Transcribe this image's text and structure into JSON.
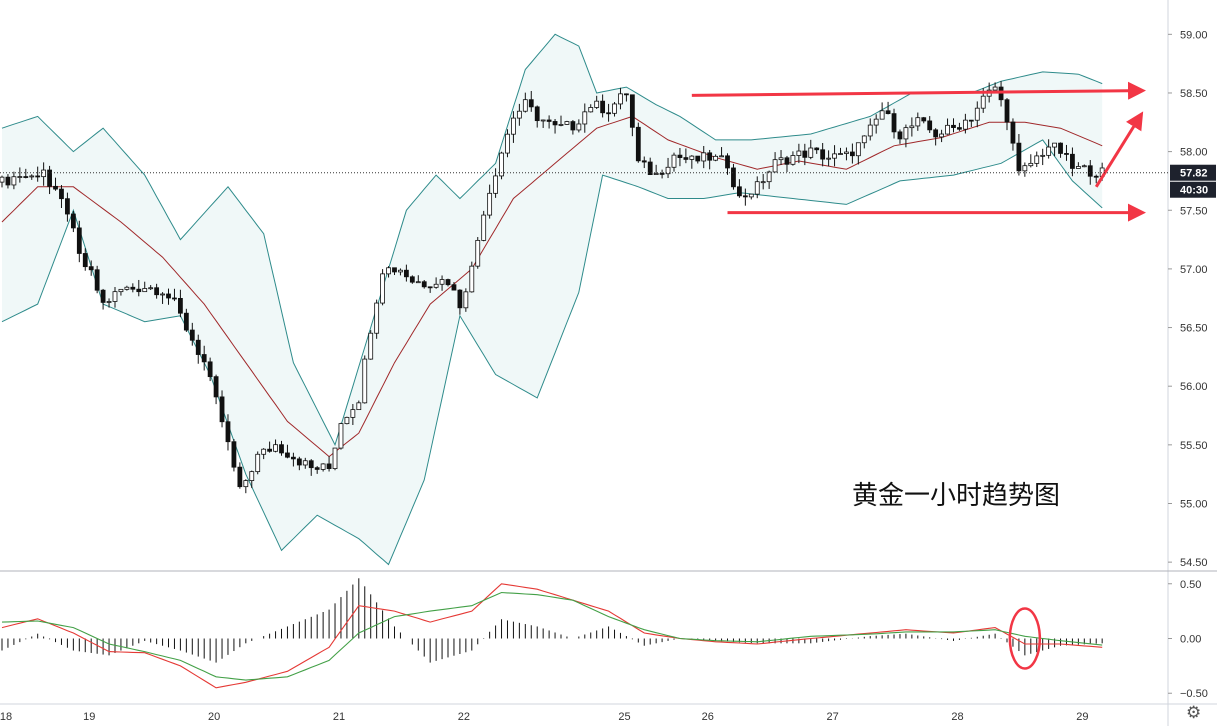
{
  "chart_data": [
    {
      "type": "candlestick",
      "instrument_note": "黄金一小时趋势图",
      "price_axis": {
        "ticks": [
          59.0,
          58.5,
          58.0,
          57.5,
          57.0,
          56.5,
          56.0,
          55.5,
          55.0,
          54.5
        ],
        "ylim": [
          54.45,
          59.25
        ]
      },
      "time_axis": {
        "ticks": [
          "18",
          "19",
          "20",
          "21",
          "22",
          "25",
          "26",
          "27",
          "28",
          "29"
        ]
      },
      "last_price": "57.82",
      "countdown": "40:30",
      "close_path": [
        [
          0,
          57.74
        ],
        [
          3,
          57.8
        ],
        [
          5,
          57.78
        ],
        [
          7,
          57.86
        ],
        [
          8,
          57.7
        ],
        [
          11,
          57.5
        ],
        [
          13,
          57.1
        ],
        [
          15,
          56.95
        ],
        [
          17,
          56.7
        ],
        [
          20,
          56.82
        ],
        [
          24,
          56.85
        ],
        [
          27,
          56.82
        ],
        [
          29,
          56.7
        ],
        [
          31,
          56.5
        ],
        [
          34,
          56.2
        ],
        [
          37,
          55.7
        ],
        [
          40,
          55.1
        ],
        [
          43,
          55.4
        ],
        [
          46,
          55.5
        ],
        [
          49,
          55.4
        ],
        [
          52,
          55.3
        ],
        [
          55,
          55.3
        ],
        [
          57,
          55.7
        ],
        [
          60,
          55.9
        ],
        [
          62,
          56.5
        ],
        [
          64,
          57.0
        ],
        [
          67,
          57.0
        ],
        [
          69,
          56.9
        ],
        [
          71,
          56.88
        ],
        [
          73,
          56.9
        ],
        [
          75,
          56.9
        ],
        [
          77,
          56.7
        ],
        [
          79,
          57.0
        ],
        [
          81,
          57.5
        ],
        [
          84,
          58.0
        ],
        [
          86,
          58.3
        ],
        [
          88,
          58.4
        ],
        [
          90,
          58.3
        ],
        [
          93,
          58.2
        ],
        [
          96,
          58.22
        ],
        [
          99,
          58.4
        ],
        [
          102,
          58.36
        ],
        [
          105,
          58.5
        ],
        [
          107,
          57.9
        ],
        [
          110,
          57.8
        ],
        [
          113,
          57.97
        ],
        [
          116,
          57.92
        ],
        [
          119,
          57.95
        ],
        [
          122,
          57.9
        ],
        [
          124,
          57.6
        ],
        [
          127,
          57.7
        ],
        [
          130,
          57.9
        ],
        [
          133,
          57.96
        ],
        [
          136,
          58.0
        ],
        [
          139,
          57.95
        ],
        [
          142,
          57.96
        ],
        [
          145,
          58.1
        ],
        [
          148,
          58.35
        ],
        [
          151,
          58.15
        ],
        [
          154,
          58.25
        ],
        [
          157,
          58.15
        ],
        [
          160,
          58.2
        ],
        [
          163,
          58.3
        ],
        [
          165,
          58.45
        ],
        [
          167,
          58.55
        ],
        [
          169,
          58.3
        ],
        [
          171,
          57.8
        ],
        [
          173,
          57.9
        ],
        [
          176,
          58.05
        ],
        [
          178,
          58.0
        ],
        [
          180,
          57.86
        ],
        [
          183,
          57.84
        ],
        [
          185,
          57.82
        ]
      ],
      "bollinger": {
        "upper": [
          [
            0,
            58.2
          ],
          [
            6,
            58.3
          ],
          [
            12,
            58.0
          ],
          [
            17,
            58.2
          ],
          [
            24,
            57.8
          ],
          [
            30,
            57.25
          ],
          [
            38,
            57.7
          ],
          [
            44,
            57.3
          ],
          [
            49,
            56.2
          ],
          [
            56,
            55.5
          ],
          [
            62,
            56.5
          ],
          [
            68,
            57.5
          ],
          [
            73,
            57.8
          ],
          [
            77,
            57.6
          ],
          [
            83,
            57.9
          ],
          [
            88,
            58.7
          ],
          [
            93,
            59.0
          ],
          [
            97,
            58.9
          ],
          [
            100,
            58.5
          ],
          [
            105,
            58.55
          ],
          [
            110,
            58.4
          ],
          [
            114,
            58.3
          ],
          [
            120,
            58.1
          ],
          [
            126,
            58.1
          ],
          [
            136,
            58.15
          ],
          [
            146,
            58.3
          ],
          [
            153,
            58.5
          ],
          [
            163,
            58.5
          ],
          [
            168,
            58.6
          ],
          [
            175,
            58.68
          ],
          [
            181,
            58.66
          ],
          [
            185,
            58.58
          ]
        ],
        "middle": [
          [
            0,
            57.4
          ],
          [
            6,
            57.7
          ],
          [
            12,
            57.7
          ],
          [
            20,
            57.4
          ],
          [
            27,
            57.1
          ],
          [
            34,
            56.7
          ],
          [
            41,
            56.2
          ],
          [
            48,
            55.7
          ],
          [
            55,
            55.4
          ],
          [
            60,
            55.6
          ],
          [
            66,
            56.2
          ],
          [
            72,
            56.7
          ],
          [
            79,
            57.0
          ],
          [
            86,
            57.6
          ],
          [
            93,
            57.9
          ],
          [
            100,
            58.2
          ],
          [
            106,
            58.3
          ],
          [
            112,
            58.1
          ],
          [
            120,
            57.95
          ],
          [
            127,
            57.85
          ],
          [
            134,
            57.92
          ],
          [
            142,
            57.85
          ],
          [
            150,
            58.05
          ],
          [
            158,
            58.12
          ],
          [
            166,
            58.25
          ],
          [
            172,
            58.25
          ],
          [
            178,
            58.2
          ],
          [
            185,
            58.05
          ]
        ],
        "lower": [
          [
            0,
            56.55
          ],
          [
            6,
            56.7
          ],
          [
            12,
            57.5
          ],
          [
            17,
            56.7
          ],
          [
            24,
            56.55
          ],
          [
            30,
            56.6
          ],
          [
            35,
            56.1
          ],
          [
            41,
            55.25
          ],
          [
            47,
            54.6
          ],
          [
            53,
            54.9
          ],
          [
            60,
            54.7
          ],
          [
            65,
            54.48
          ],
          [
            71,
            55.2
          ],
          [
            77,
            56.6
          ],
          [
            83,
            56.1
          ],
          [
            90,
            55.9
          ],
          [
            97,
            56.8
          ],
          [
            101,
            57.8
          ],
          [
            107,
            57.7
          ],
          [
            112,
            57.6
          ],
          [
            118,
            57.6
          ],
          [
            124,
            57.65
          ],
          [
            133,
            57.6
          ],
          [
            142,
            57.55
          ],
          [
            151,
            57.75
          ],
          [
            160,
            57.8
          ],
          [
            168,
            57.9
          ],
          [
            175,
            58.1
          ],
          [
            180,
            57.75
          ],
          [
            185,
            57.52
          ]
        ]
      },
      "arrows": [
        {
          "from": [
            116,
            58.48
          ],
          "to": [
            188,
            58.52
          ],
          "color": "#f23645"
        },
        {
          "from": [
            122,
            57.48
          ],
          "to": [
            188,
            57.48
          ],
          "color": "#f23645"
        },
        {
          "from": [
            184,
            57.7
          ],
          "to": [
            188,
            58.3
          ],
          "color": "#f23645"
        }
      ]
    },
    {
      "type": "macd",
      "axis": {
        "ticks": [
          "0.50",
          "0.00",
          "−0.50"
        ],
        "values": [
          0.5,
          0.0,
          -0.5
        ],
        "ylim": [
          -0.58,
          0.58
        ]
      },
      "series": [
        {
          "color": "#e53935",
          "values": [
            [
              0,
              0.1
            ],
            [
              6,
              0.18
            ],
            [
              12,
              0.05
            ],
            [
              18,
              -0.12
            ],
            [
              24,
              -0.13
            ],
            [
              30,
              -0.25
            ],
            [
              36,
              -0.45
            ],
            [
              41,
              -0.4
            ],
            [
              48,
              -0.3
            ],
            [
              55,
              -0.08
            ],
            [
              60,
              0.3
            ],
            [
              66,
              0.25
            ],
            [
              72,
              0.15
            ],
            [
              79,
              0.25
            ],
            [
              84,
              0.5
            ],
            [
              90,
              0.45
            ],
            [
              96,
              0.35
            ],
            [
              102,
              0.25
            ],
            [
              108,
              0.05
            ],
            [
              114,
              0.0
            ],
            [
              120,
              -0.03
            ],
            [
              127,
              -0.05
            ],
            [
              136,
              0.0
            ],
            [
              146,
              0.05
            ],
            [
              152,
              0.08
            ],
            [
              160,
              0.05
            ],
            [
              167,
              0.1
            ],
            [
              172,
              -0.05
            ],
            [
              178,
              -0.05
            ],
            [
              185,
              -0.08
            ]
          ]
        },
        {
          "color": "#43a047",
          "values": [
            [
              0,
              0.15
            ],
            [
              6,
              0.16
            ],
            [
              12,
              0.1
            ],
            [
              18,
              -0.05
            ],
            [
              24,
              -0.12
            ],
            [
              30,
              -0.2
            ],
            [
              36,
              -0.35
            ],
            [
              41,
              -0.38
            ],
            [
              48,
              -0.35
            ],
            [
              55,
              -0.2
            ],
            [
              60,
              0.05
            ],
            [
              66,
              0.2
            ],
            [
              72,
              0.25
            ],
            [
              79,
              0.3
            ],
            [
              84,
              0.42
            ],
            [
              90,
              0.4
            ],
            [
              96,
              0.35
            ],
            [
              102,
              0.2
            ],
            [
              108,
              0.08
            ],
            [
              114,
              0.0
            ],
            [
              120,
              -0.02
            ],
            [
              127,
              -0.03
            ],
            [
              136,
              0.02
            ],
            [
              146,
              0.04
            ],
            [
              152,
              0.06
            ],
            [
              160,
              0.06
            ],
            [
              167,
              0.08
            ],
            [
              172,
              0.02
            ],
            [
              178,
              -0.02
            ],
            [
              185,
              -0.06
            ]
          ]
        }
      ],
      "marker": {
        "x": 172,
        "y": 0.0,
        "color": "#f23645"
      }
    }
  ]
}
